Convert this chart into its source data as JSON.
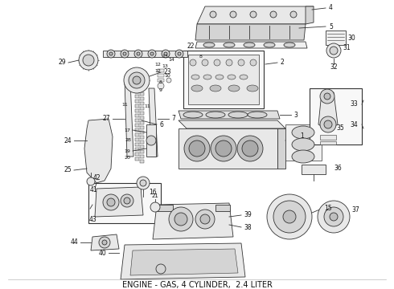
{
  "caption": "ENGINE - GAS, 4 CYLINDER,  2.4 LITER",
  "caption_fontsize": 7,
  "bg_color": "#ffffff",
  "lc": "#333333",
  "fc_light": "#e8e8e8",
  "fc_mid": "#d4d4d4",
  "fc_dark": "#c0c0c0",
  "fig_width": 4.9,
  "fig_height": 3.6,
  "dpi": 100
}
